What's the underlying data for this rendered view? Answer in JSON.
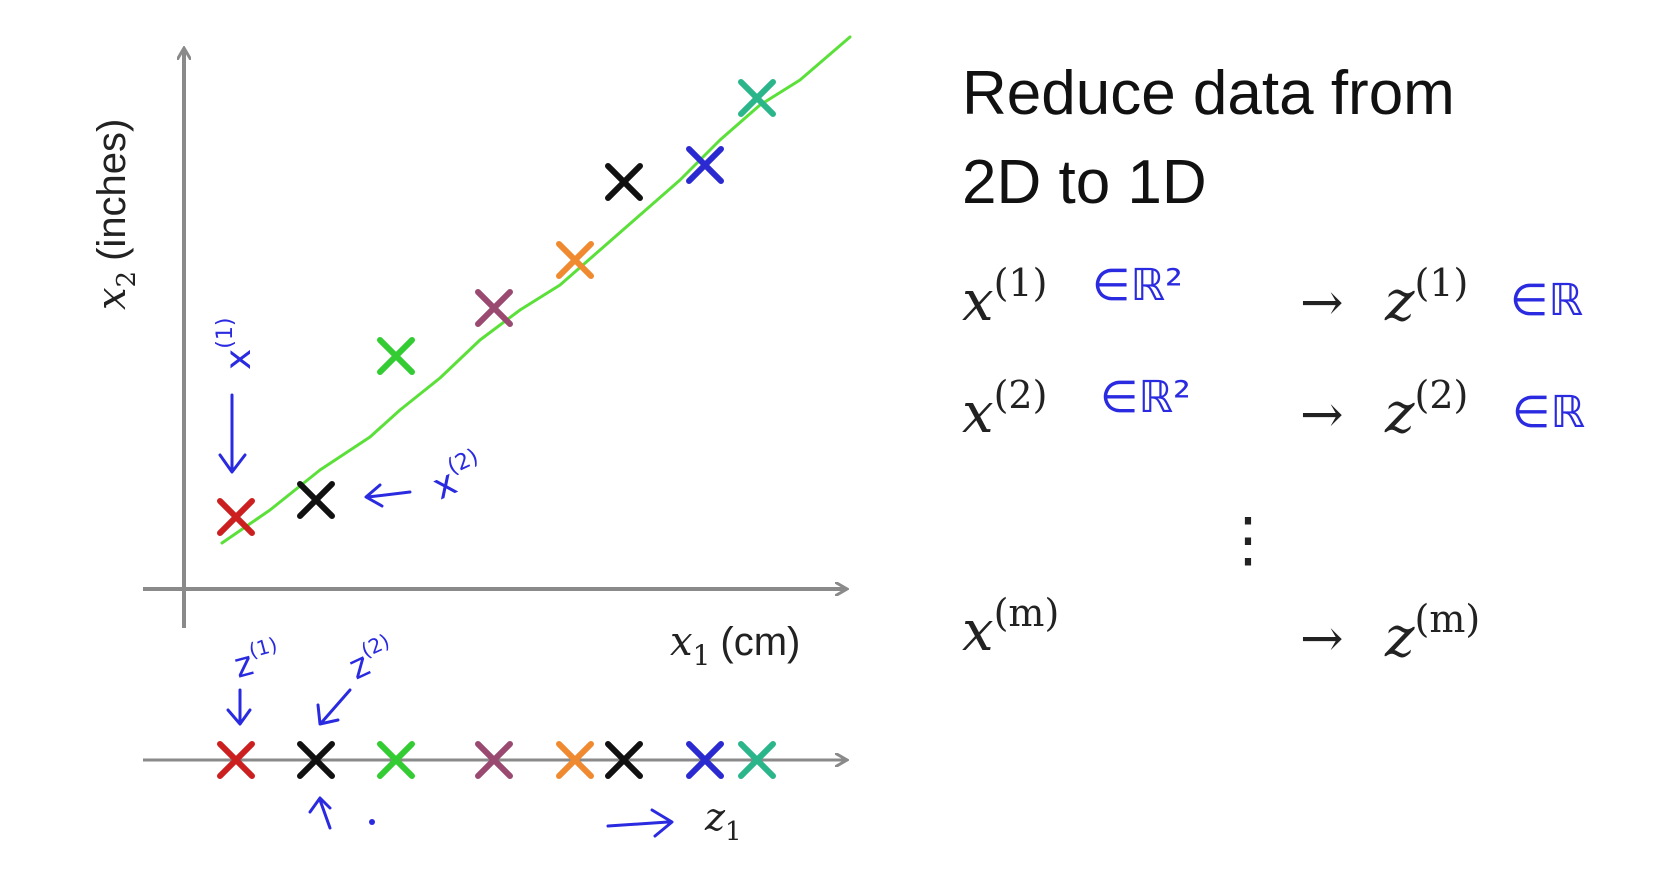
{
  "title": {
    "line1": "Reduce data from",
    "line2": "2D to 1D"
  },
  "plot": {
    "y_axis_label_var": "x",
    "y_axis_label_sub": "2",
    "y_axis_label_unit": "(inches)",
    "x_axis_label_var": "x",
    "x_axis_label_sub": "1",
    "x_axis_label_unit": "(cm)",
    "line_color": "#5be03a",
    "points": [
      {
        "color": "#cc2020"
      },
      {
        "color": "#111111"
      },
      {
        "color": "#33cc33"
      },
      {
        "color": "#9a4a70"
      },
      {
        "color": "#f08a30"
      },
      {
        "color": "#111111"
      },
      {
        "color": "#2a2ad0"
      },
      {
        "color": "#2bb58a"
      }
    ]
  },
  "projection": {
    "axis_label_var": "z",
    "axis_label_sub": "1"
  },
  "annotations": {
    "x1_label": "x",
    "x1_sup": "(1)",
    "x2_label": "x",
    "x2_sup": "(2)",
    "z1_label": "z",
    "z1_sup": "(1)",
    "z2_label": "z",
    "z2_sup": "(2)",
    "color": "#2a2ae0"
  },
  "mapping": {
    "rows": [
      {
        "x": "x",
        "sup": "(1)",
        "domain": "∈ℝ²",
        "z": "z",
        "zsup": "(1)",
        "zdomain": "∈ℝ"
      },
      {
        "x": "x",
        "sup": "(2)",
        "domain": "∈ℝ²",
        "z": "z",
        "zsup": "(2)",
        "zdomain": "∈ℝ"
      },
      {
        "x": "x",
        "sup": "(m)",
        "domain": "",
        "z": "z",
        "zsup": "(m)",
        "zdomain": ""
      }
    ],
    "arrow": "→",
    "ellipsis": "⋮"
  }
}
